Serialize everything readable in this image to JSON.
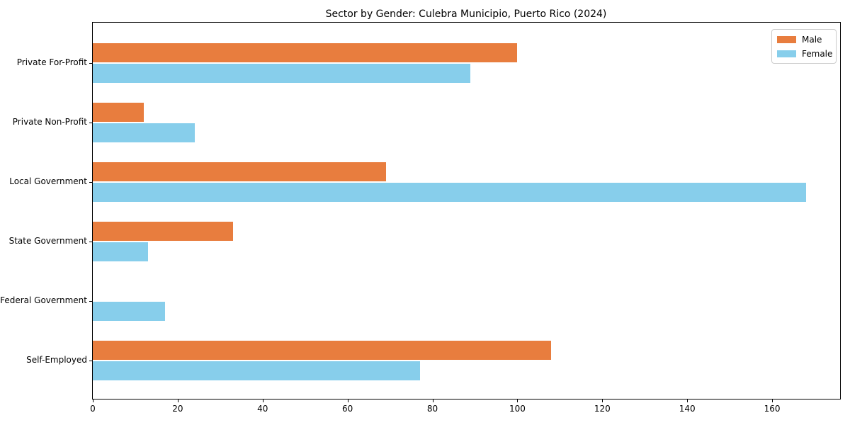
{
  "title": "Sector by Gender: Culebra Municipio, Puerto Rico (2024)",
  "chart_data": {
    "type": "bar",
    "orientation": "horizontal",
    "title": "Sector by Gender: Culebra Municipio, Puerto Rico (2024)",
    "categories": [
      "Private For-Profit",
      "Private Non-Profit",
      "Local Government",
      "State Government",
      "Federal Government",
      "Self-Employed"
    ],
    "series": [
      {
        "name": "Male",
        "color": "#e87d3e",
        "values": [
          100,
          12,
          69,
          33,
          0,
          108
        ]
      },
      {
        "name": "Female",
        "color": "#87ceeb",
        "values": [
          89,
          24,
          168,
          13,
          17,
          77
        ]
      }
    ],
    "xlabel": "",
    "ylabel": "",
    "xlim": [
      0,
      176
    ],
    "x_ticks": [
      0,
      20,
      40,
      60,
      80,
      100,
      120,
      140,
      160
    ],
    "legend_position": "upper right",
    "grid": false,
    "colors": {
      "male": "#e87d3e",
      "female": "#87ceeb",
      "axis": "#000000",
      "legend_border": "#cccccc",
      "background": "#ffffff"
    }
  }
}
